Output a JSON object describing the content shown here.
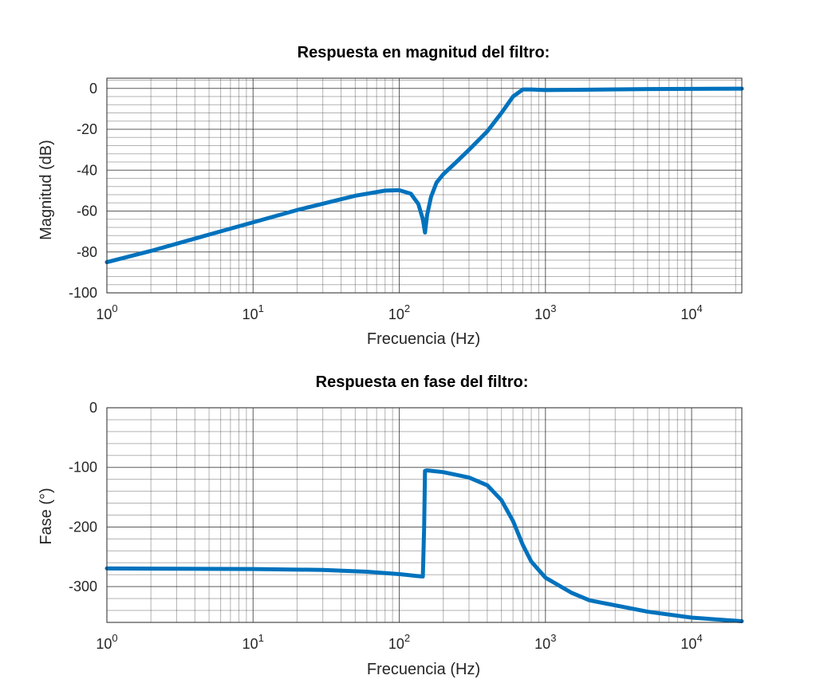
{
  "colors": {
    "series": "#0072BD",
    "axes": "#262626"
  },
  "chart_data": [
    {
      "type": "line",
      "title": "Respuesta en magnitud del filtro:",
      "xlabel": "Frecuencia (Hz)",
      "ylabel": "Magnitud (dB)",
      "xscale": "log",
      "xlim": [
        1,
        22050
      ],
      "ylim": [
        -100,
        5
      ],
      "yticks": [
        0,
        -20,
        -40,
        -60,
        -80,
        -100
      ],
      "ytick_labels": [
        "0",
        "-20",
        "-40",
        "-60",
        "-80",
        "-100"
      ],
      "xticks": [
        1,
        10,
        100,
        1000,
        10000
      ],
      "xtick_base": "10",
      "xtick_exponents": [
        "0",
        "1",
        "2",
        "3",
        "4"
      ],
      "grid": true,
      "series": [
        {
          "x": [
            1,
            2,
            5,
            10,
            20,
            50,
            80,
            100,
            120,
            135,
            145,
            150,
            155,
            165,
            180,
            200,
            250,
            300,
            400,
            500,
            600,
            700,
            800,
            1000,
            2000,
            5000,
            10000,
            22050
          ],
          "y": [
            -85,
            -79.5,
            -71.5,
            -65.5,
            -59.5,
            -52.5,
            -50,
            -49.8,
            -51.5,
            -56.5,
            -64,
            -70.5,
            -62,
            -53,
            -46,
            -42,
            -35.5,
            -30,
            -21,
            -12,
            -4,
            -0.5,
            -0.5,
            -0.8,
            -0.6,
            -0.3,
            -0.2,
            -0.1
          ]
        }
      ]
    },
    {
      "type": "line",
      "title": "Respuesta en fase del filtro:",
      "xlabel": "Frecuencia (Hz)",
      "ylabel": "Fase (°)",
      "xscale": "log",
      "xlim": [
        1,
        22050
      ],
      "ylim": [
        -360,
        0
      ],
      "yticks": [
        0,
        -100,
        -200,
        -300
      ],
      "ytick_labels": [
        "0",
        "-100",
        "-200",
        "-300"
      ],
      "xticks": [
        1,
        10,
        100,
        1000,
        10000
      ],
      "xtick_base": "10",
      "xtick_exponents": [
        "0",
        "1",
        "2",
        "3",
        "4"
      ],
      "grid": true,
      "series": [
        {
          "x": [
            1,
            3,
            10,
            30,
            60,
            100,
            130,
            145,
            148,
            150,
            155,
            200,
            300,
            400,
            500,
            600,
            700,
            800,
            1000,
            1500,
            2000,
            5000,
            10000,
            22050
          ],
          "y": [
            -269.5,
            -270,
            -270.5,
            -272,
            -275,
            -279,
            -282,
            -283,
            -200,
            -106,
            -105,
            -108,
            -117,
            -130,
            -155,
            -190,
            -230,
            -258,
            -285,
            -310,
            -323,
            -342,
            -352,
            -358
          ]
        }
      ]
    }
  ]
}
